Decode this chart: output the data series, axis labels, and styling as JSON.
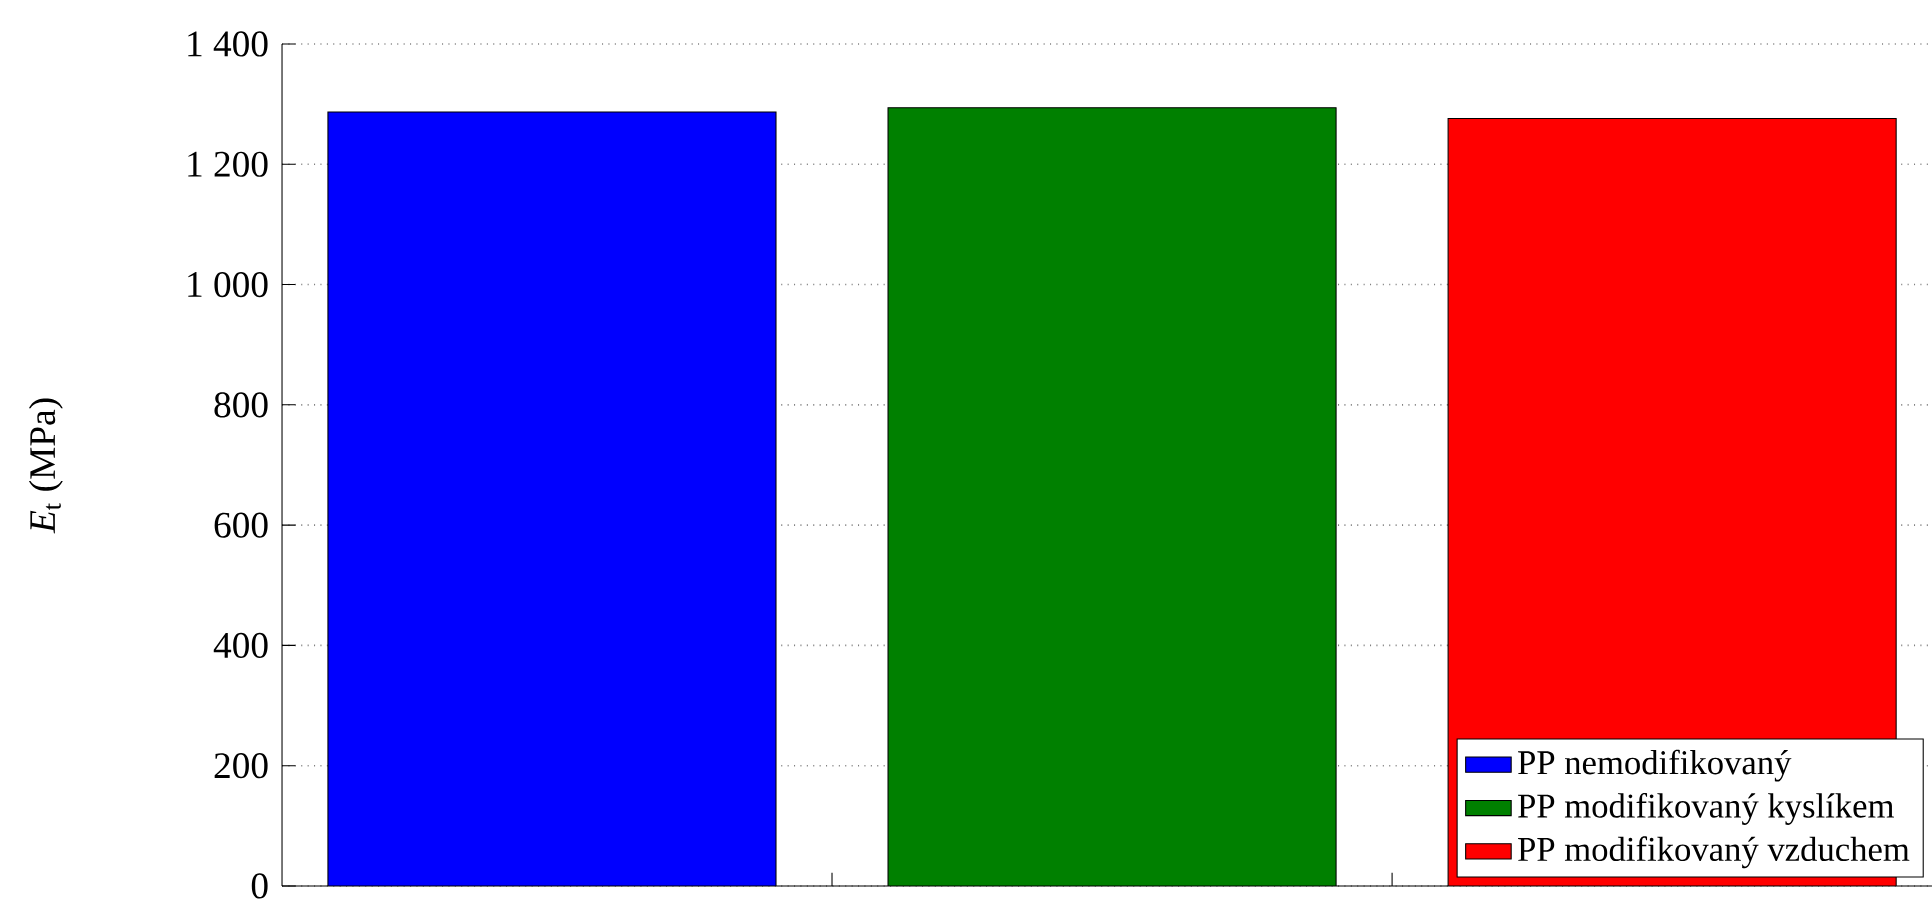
{
  "chart_data": {
    "type": "bar",
    "ylabel": "*E*$_{t}$ (MPa)",
    "categories": [
      null,
      null,
      null
    ],
    "series": [
      {
        "name": "PP nemodifikovaný",
        "color": "#0000ff",
        "values": [
          1287,
          null,
          null
        ]
      },
      {
        "name": "PP modifikovaný kyslíkem",
        "color": "#008000",
        "values": [
          null,
          1294,
          null
        ]
      },
      {
        "name": "PP modifikovaný vzduchem",
        "color": "#ff0000",
        "values": [
          null,
          null,
          1276
        ]
      }
    ],
    "ylim": [
      0,
      1400
    ],
    "yticks": [
      0,
      200,
      400,
      600,
      800,
      {
        "value": 1000,
        "label": "1 000"
      },
      {
        "value": 1200,
        "label": "1 200"
      },
      {
        "value": 1400,
        "label": "1 400"
      }
    ],
    "grid": "y",
    "legend": "bottom right"
  }
}
